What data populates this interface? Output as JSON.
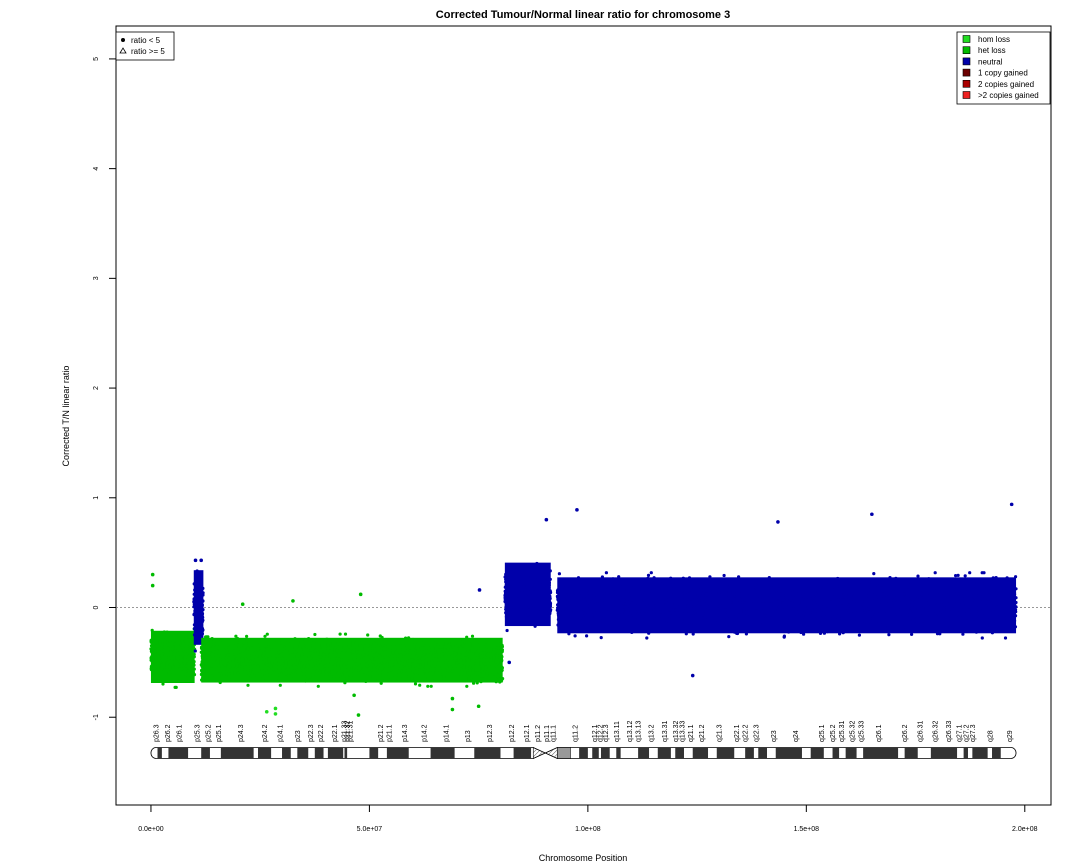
{
  "chart_data": {
    "type": "scatter",
    "title": "Corrected Tumour/Normal linear ratio for chromosome  3",
    "xlabel": "Chromosome Position",
    "ylabel": "Corrected T/N linear ratio",
    "xlim": [
      -8000000,
      206000000
    ],
    "ylim": [
      -1.8,
      5.3
    ],
    "x_ticks": [
      0,
      50000000,
      100000000,
      150000000,
      200000000
    ],
    "x_tick_labels": [
      "0.0e+00",
      "5.0e+07",
      "1.0e+08",
      "1.5e+08",
      "2.0e+08"
    ],
    "y_ticks": [
      -1,
      0,
      1,
      2,
      3,
      4,
      5
    ],
    "y_tick_labels": [
      "-1",
      "0",
      "1",
      "2",
      "3",
      "4",
      "5"
    ],
    "reference_line_y": 0,
    "shape_legend": {
      "position": "top-left",
      "items": [
        {
          "symbol": "circle",
          "label": "ratio < 5"
        },
        {
          "symbol": "triangle",
          "label": "ratio >= 5"
        }
      ]
    },
    "state_legend": {
      "position": "top-right",
      "items": [
        {
          "label": "hom loss",
          "color": "#22dd22"
        },
        {
          "label": "het loss",
          "color": "#00bb00"
        },
        {
          "label": "neutral",
          "color": "#0000aa"
        },
        {
          "label": "1 copy gained",
          "color": "#6b0000"
        },
        {
          "label": "2 copies gained",
          "color": "#aa0000"
        },
        {
          "label": ">2 copies gained",
          "color": "#ee2222"
        }
      ]
    },
    "segments": [
      {
        "state": "het loss",
        "start": 0,
        "end": 10000000,
        "mean": -0.45,
        "spread": 0.14,
        "color": "#00bb00"
      },
      {
        "state": "neutral",
        "start": 9800000,
        "end": 12000000,
        "mean": 0.0,
        "spread": 0.2,
        "color": "#0000aa"
      },
      {
        "state": "het loss",
        "start": 11500000,
        "end": 80500000,
        "mean": -0.48,
        "spread": 0.12,
        "color": "#00bb00"
      },
      {
        "state": "neutral",
        "start": 81000000,
        "end": 91500000,
        "mean": 0.12,
        "spread": 0.17,
        "color": "#0000aa"
      },
      {
        "state": "neutral",
        "start": 93000000,
        "end": 198000000,
        "mean": 0.02,
        "spread": 0.15,
        "color": "#0000aa"
      }
    ],
    "outliers": [
      {
        "x": 400000,
        "y": 0.3,
        "color": "#00bb00"
      },
      {
        "x": 400000,
        "y": 0.2,
        "color": "#00bb00"
      },
      {
        "x": 10200000,
        "y": 0.43,
        "color": "#0000aa"
      },
      {
        "x": 11500000,
        "y": 0.43,
        "color": "#0000aa"
      },
      {
        "x": 21000000,
        "y": 0.03,
        "color": "#00bb00"
      },
      {
        "x": 26500000,
        "y": -0.95,
        "color": "#22dd22"
      },
      {
        "x": 28500000,
        "y": -0.92,
        "color": "#22dd22"
      },
      {
        "x": 28500000,
        "y": -0.97,
        "color": "#22dd22"
      },
      {
        "x": 32500000,
        "y": 0.06,
        "color": "#00bb00"
      },
      {
        "x": 48000000,
        "y": 0.12,
        "color": "#00bb00"
      },
      {
        "x": 47500000,
        "y": -0.98,
        "color": "#00bb00"
      },
      {
        "x": 46500000,
        "y": -0.8,
        "color": "#00bb00"
      },
      {
        "x": 69000000,
        "y": -0.83,
        "color": "#00bb00"
      },
      {
        "x": 69000000,
        "y": -0.93,
        "color": "#00bb00"
      },
      {
        "x": 75000000,
        "y": -0.9,
        "color": "#00bb00"
      },
      {
        "x": 75200000,
        "y": 0.16,
        "color": "#0000aa"
      },
      {
        "x": 82000000,
        "y": -0.5,
        "color": "#0000aa"
      },
      {
        "x": 90500000,
        "y": 0.8,
        "color": "#0000aa"
      },
      {
        "x": 97500000,
        "y": 0.89,
        "color": "#0000aa"
      },
      {
        "x": 124000000,
        "y": -0.62,
        "color": "#0000aa"
      },
      {
        "x": 143500000,
        "y": 0.78,
        "color": "#0000aa"
      },
      {
        "x": 165000000,
        "y": 0.85,
        "color": "#0000aa"
      },
      {
        "x": 197000000,
        "y": 0.94,
        "color": "#0000aa"
      }
    ],
    "ideogram": {
      "centromere": [
        87500000,
        93000000
      ],
      "stalk": [
        93000000,
        96000000
      ],
      "band_labels": [
        {
          "name": "p26.3",
          "pos": 1200000
        },
        {
          "name": "p26.2",
          "pos": 3800000
        },
        {
          "name": "p26.1",
          "pos": 6400000
        },
        {
          "name": "p25.3",
          "pos": 10500000
        },
        {
          "name": "p25.2",
          "pos": 13000000
        },
        {
          "name": "p25.1",
          "pos": 15500000
        },
        {
          "name": "p24.3",
          "pos": 20500000
        },
        {
          "name": "p24.2",
          "pos": 26000000
        },
        {
          "name": "p24.1",
          "pos": 29500000
        },
        {
          "name": "p23",
          "pos": 33500000
        },
        {
          "name": "p22.3",
          "pos": 36500000
        },
        {
          "name": "p22.2",
          "pos": 38800000
        },
        {
          "name": "p22.1",
          "pos": 42000000
        },
        {
          "name": "p21.33",
          "pos": 44200000
        },
        {
          "name": "p21.32",
          "pos": 44900000
        },
        {
          "name": "p21.31",
          "pos": 45600000
        },
        {
          "name": "p21.2",
          "pos": 52500000
        },
        {
          "name": "p21.1",
          "pos": 54500000
        },
        {
          "name": "p14.3",
          "pos": 58000000
        },
        {
          "name": "p14.2",
          "pos": 62500000
        },
        {
          "name": "p14.1",
          "pos": 67500000
        },
        {
          "name": "p13",
          "pos": 72500000
        },
        {
          "name": "p12.3",
          "pos": 77500000
        },
        {
          "name": "p12.2",
          "pos": 82500000
        },
        {
          "name": "p12.1",
          "pos": 86000000
        },
        {
          "name": "p11.2",
          "pos": 88500000
        },
        {
          "name": "p11.1",
          "pos": 90500000
        },
        {
          "name": "q11.1",
          "pos": 92000000
        },
        {
          "name": "q11.2",
          "pos": 97000000
        },
        {
          "name": "q12.1",
          "pos": 101500000
        },
        {
          "name": "q12.2",
          "pos": 102800000
        },
        {
          "name": "q12.3",
          "pos": 104000000
        },
        {
          "name": "q13.11",
          "pos": 106500000
        },
        {
          "name": "q13.12",
          "pos": 109500000
        },
        {
          "name": "q13.13",
          "pos": 111500000
        },
        {
          "name": "q13.2",
          "pos": 114500000
        },
        {
          "name": "q13.31",
          "pos": 117500000
        },
        {
          "name": "q13.32",
          "pos": 120000000
        },
        {
          "name": "q13.33",
          "pos": 121500000
        },
        {
          "name": "q21.1",
          "pos": 123500000
        },
        {
          "name": "q21.2",
          "pos": 126000000
        },
        {
          "name": "q21.3",
          "pos": 130000000
        },
        {
          "name": "q22.1",
          "pos": 134000000
        },
        {
          "name": "q22.2",
          "pos": 136000000
        },
        {
          "name": "q22.3",
          "pos": 138500000
        },
        {
          "name": "q23",
          "pos": 142500000
        },
        {
          "name": "q24",
          "pos": 147500000
        },
        {
          "name": "q25.1",
          "pos": 153500000
        },
        {
          "name": "q25.2",
          "pos": 156000000
        },
        {
          "name": "q25.31",
          "pos": 158000000
        },
        {
          "name": "q25.32",
          "pos": 160500000
        },
        {
          "name": "q25.33",
          "pos": 162500000
        },
        {
          "name": "q26.1",
          "pos": 166500000
        },
        {
          "name": "q26.2",
          "pos": 172500000
        },
        {
          "name": "q26.31",
          "pos": 176000000
        },
        {
          "name": "q26.32",
          "pos": 179500000
        },
        {
          "name": "q26.33",
          "pos": 182500000
        },
        {
          "name": "q27.1",
          "pos": 185000000
        },
        {
          "name": "q27.2",
          "pos": 186500000
        },
        {
          "name": "q27.3",
          "pos": 188000000
        },
        {
          "name": "q28",
          "pos": 192000000
        },
        {
          "name": "q29",
          "pos": 196500000
        }
      ],
      "dark_bands": [
        [
          1500000,
          2500000
        ],
        [
          4000000,
          8500000
        ],
        [
          11500000,
          13500000
        ],
        [
          16000000,
          23500000
        ],
        [
          24500000,
          27500000
        ],
        [
          30000000,
          32000000
        ],
        [
          33500000,
          36000000
        ],
        [
          37500000,
          39500000
        ],
        [
          40500000,
          44000000
        ],
        [
          44300000,
          44900000
        ],
        [
          50000000,
          52000000
        ],
        [
          54000000,
          59000000
        ],
        [
          64000000,
          69500000
        ],
        [
          74000000,
          80000000
        ],
        [
          83000000,
          87000000
        ],
        [
          98000000,
          100000000
        ],
        [
          101000000,
          102500000
        ],
        [
          103000000,
          105000000
        ],
        [
          106500000,
          107500000
        ],
        [
          111500000,
          114000000
        ],
        [
          116000000,
          119000000
        ],
        [
          120000000,
          122000000
        ],
        [
          124000000,
          127500000
        ],
        [
          129500000,
          133500000
        ],
        [
          136000000,
          138000000
        ],
        [
          139000000,
          141000000
        ],
        [
          143000000,
          149000000
        ],
        [
          151000000,
          154000000
        ],
        [
          156000000,
          157500000
        ],
        [
          159000000,
          161500000
        ],
        [
          163000000,
          171000000
        ],
        [
          172500000,
          175500000
        ],
        [
          178500000,
          184500000
        ],
        [
          186000000,
          187000000
        ],
        [
          188000000,
          191500000
        ],
        [
          192500000,
          194500000
        ]
      ]
    }
  }
}
